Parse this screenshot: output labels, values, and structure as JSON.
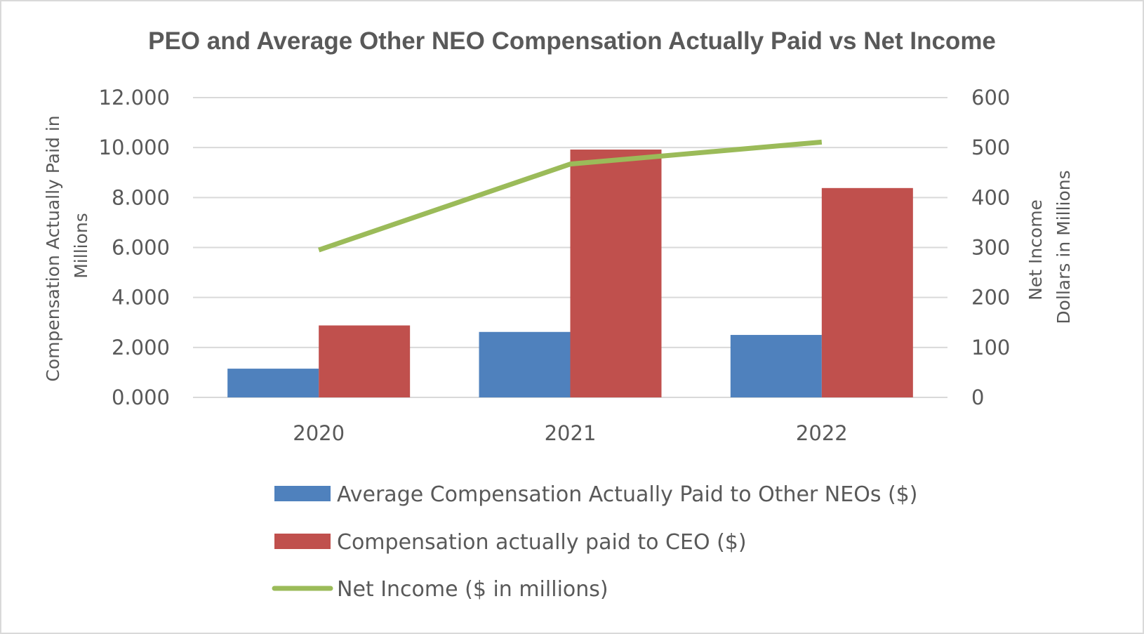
{
  "chart_data": {
    "type": "bar",
    "title": "PEO and Average Other NEO Compensation Actually Paid vs Net Income",
    "categories": [
      "2020",
      "2021",
      "2022"
    ],
    "y_left": {
      "title_lines": [
        "Compensation Actually Paid in",
        "Millions"
      ],
      "ticks": [
        "0.000",
        "2.000",
        "4.000",
        "6.000",
        "8.000",
        "10.000",
        "12.000"
      ],
      "ylim": [
        0,
        12
      ]
    },
    "y_right": {
      "title_lines": [
        "Net Income",
        "Dollars in Millions"
      ],
      "ticks": [
        "0",
        "100",
        "200",
        "300",
        "400",
        "500",
        "600"
      ],
      "ylim": [
        0,
        600
      ]
    },
    "series": [
      {
        "name": "Average Compensation Actually Paid to Other NEOs ($)",
        "type": "bar",
        "axis": "left",
        "color": "#4f81bd",
        "values": [
          1.15,
          2.62,
          2.5
        ]
      },
      {
        "name": "Compensation actually paid to CEO ($)",
        "type": "bar",
        "axis": "left",
        "color": "#c0504d",
        "values": [
          2.88,
          9.92,
          8.38
        ]
      },
      {
        "name": "Net Income ($ in millions)",
        "type": "line",
        "axis": "right",
        "color": "#9bbb59",
        "values": [
          295,
          467,
          511
        ]
      }
    ],
    "grid": true,
    "legend_position": "bottom"
  }
}
